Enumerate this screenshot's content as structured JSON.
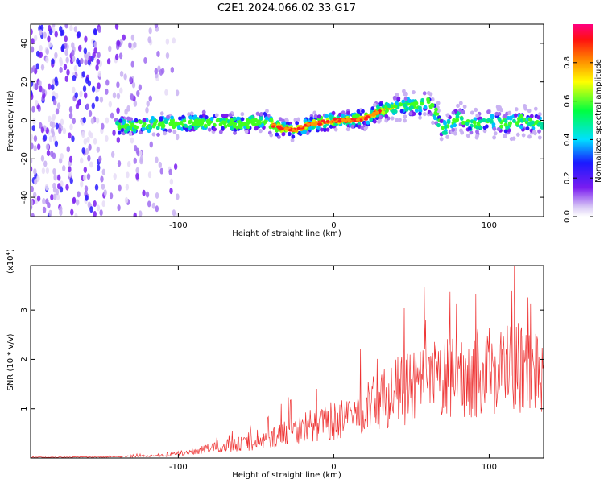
{
  "title": "C2E1.2024.066.02.33.G17",
  "chart_data": [
    {
      "type": "heatmap",
      "xlabel": "Height of straight line (km)",
      "ylabel": "Frequency (Hz)",
      "xlim": [
        -195,
        135
      ],
      "ylim": [
        -50,
        50
      ],
      "xticks": [
        -100,
        0,
        100
      ],
      "yticks": [
        -40,
        -20,
        0,
        20,
        40
      ],
      "colorbar": {
        "label": "Normalized spectral amplitude",
        "range": [
          0,
          1
        ],
        "ticks": [
          "0.0",
          "0.2",
          "0.4",
          "0.6",
          "0.8"
        ]
      },
      "ridge": {
        "x": [
          -135,
          -110,
          -80,
          -60,
          -45,
          -35,
          -25,
          -15,
          0,
          10,
          20,
          30,
          45,
          55,
          60,
          65,
          70,
          80,
          90,
          100,
          110,
          120,
          130
        ],
        "freq": [
          -3,
          -2,
          -1,
          -2,
          0,
          -4,
          -5,
          -2,
          0,
          0,
          1,
          5,
          8,
          7,
          10,
          5,
          -5,
          2,
          -3,
          0,
          -2,
          0,
          -2
        ]
      }
    },
    {
      "type": "line",
      "xlabel": "Height of straight line (km)",
      "ylabel": "SNR (10 * v/v)",
      "yexp": "(x10",
      "yexp_power": "4",
      "yexp_close": ")",
      "xlim": [
        -195,
        135
      ],
      "ylim": [
        0,
        3.9
      ],
      "xticks": [
        -100,
        0,
        100
      ],
      "yticks": [
        1,
        2,
        3
      ],
      "color": "#ee3333",
      "envelope": {
        "x": [
          -195,
          -150,
          -110,
          -90,
          -75,
          -60,
          -50,
          -40,
          -30,
          -20,
          -10,
          0,
          10,
          20,
          30,
          40,
          50,
          60,
          70,
          80,
          90,
          100,
          110,
          120,
          135
        ],
        "y": [
          0.02,
          0.03,
          0.07,
          0.18,
          0.32,
          0.4,
          0.42,
          0.55,
          0.75,
          0.88,
          0.95,
          1.05,
          1.1,
          1.4,
          1.6,
          1.85,
          1.95,
          2.1,
          2.2,
          2.25,
          2.35,
          2.45,
          2.55,
          2.5,
          2.45
        ]
      }
    }
  ]
}
